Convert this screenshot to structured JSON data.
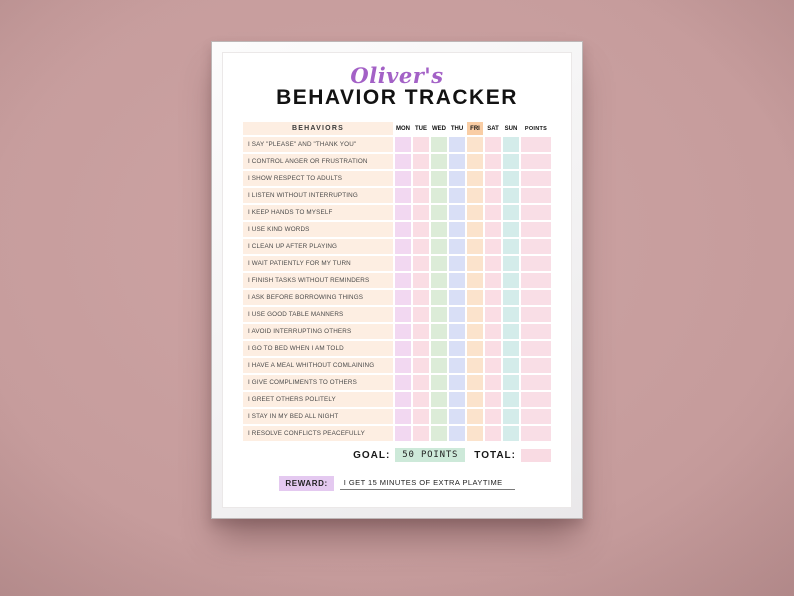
{
  "poster": {
    "title_script": "Oliver's",
    "title_main": "BEHAVIOR TRACKER",
    "table": {
      "behaviors_header": "BEHAVIORS",
      "days": [
        "MON",
        "TUE",
        "WED",
        "THU",
        "FRI",
        "SAT",
        "SUN"
      ],
      "highlighted_day": "FRI",
      "points_header": "POINTS",
      "behaviors": [
        "I SAY \"PLEASE\" AND \"THANK YOU\"",
        "I CONTROL ANGER OR FRUSTRATION",
        "I SHOW RESPECT TO ADULTS",
        "I LISTEN WITHOUT INTERRUPTING",
        "I KEEP HANDS TO MYSELF",
        "I USE KIND WORDS",
        "I CLEAN UP AFTER PLAYING",
        "I WAIT PATIENTLY FOR MY TURN",
        "I FINISH TASKS WITHOUT REMINDERS",
        "I ASK BEFORE BORROWING THINGS",
        "I USE GOOD TABLE MANNERS",
        "I AVOID INTERRUPTING OTHERS",
        "I GO TO BED WHEN I AM TOLD",
        "I HAVE A MEAL WHITHOUT COMLAINING",
        "I GIVE COMPLIMENTS TO OTHERS",
        "I GREET OTHERS POLITELY",
        "I STAY IN MY BED ALL NIGHT",
        "I RESOLVE CONFLICTS PEACEFULLY"
      ]
    },
    "footer": {
      "goal_label": "GOAL:",
      "goal_value": "50 POINTS",
      "total_label": "TOTAL:",
      "reward_label": "REWARD:",
      "reward_text": "I GET 15 MINUTES OF EXTRA PLAYTIME"
    },
    "colors": {
      "wall": "#c69c9c",
      "wall_light": "#cda4a4",
      "title_script": "#a361c6",
      "behaviors_bg": "#fdeee2",
      "day_colors": [
        "#f2d8f1",
        "#fadde4",
        "#dcecd8",
        "#d9dff6",
        "#fbe3cc",
        "#fadde4",
        "#d4ecea"
      ],
      "fri_header_bg": "#f9cda4",
      "points_bg": "#f9dee6",
      "goal_highlight": "#cde9d9",
      "total_box": "#f9dbe3",
      "reward_highlight": "#e4c9f0"
    }
  }
}
